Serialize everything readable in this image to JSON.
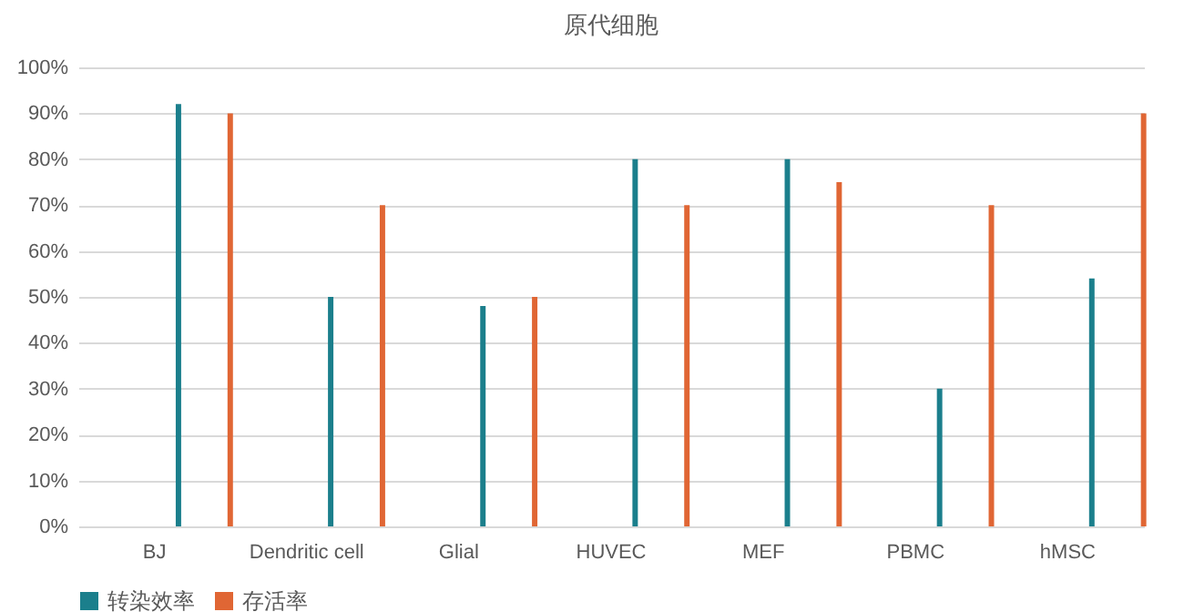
{
  "chart_data": {
    "type": "bar",
    "title": "原代细胞",
    "categories": [
      "BJ",
      "Dendritic cell",
      "Glial",
      "HUVEC",
      "MEF",
      "PBMC",
      "hMSC"
    ],
    "series": [
      {
        "name": "转染效率",
        "color": "#1b7f8c",
        "values": [
          92,
          50,
          48,
          80,
          80,
          30,
          54
        ]
      },
      {
        "name": "存活率",
        "color": "#e06634",
        "values": [
          90,
          70,
          50,
          70,
          75,
          70,
          90
        ]
      }
    ],
    "ylim": [
      0,
      100
    ],
    "yticks": [
      {
        "value": 0,
        "label": "0%"
      },
      {
        "value": 10,
        "label": "10%"
      },
      {
        "value": 20,
        "label": "20%"
      },
      {
        "value": 30,
        "label": "30%"
      },
      {
        "value": 40,
        "label": "40%"
      },
      {
        "value": 50,
        "label": "50%"
      },
      {
        "value": 60,
        "label": "60%"
      },
      {
        "value": 70,
        "label": "70%"
      },
      {
        "value": 80,
        "label": "80%"
      },
      {
        "value": 90,
        "label": "90%"
      },
      {
        "value": 100,
        "label": "100%"
      }
    ],
    "grid": "y",
    "legend": "bottom"
  }
}
